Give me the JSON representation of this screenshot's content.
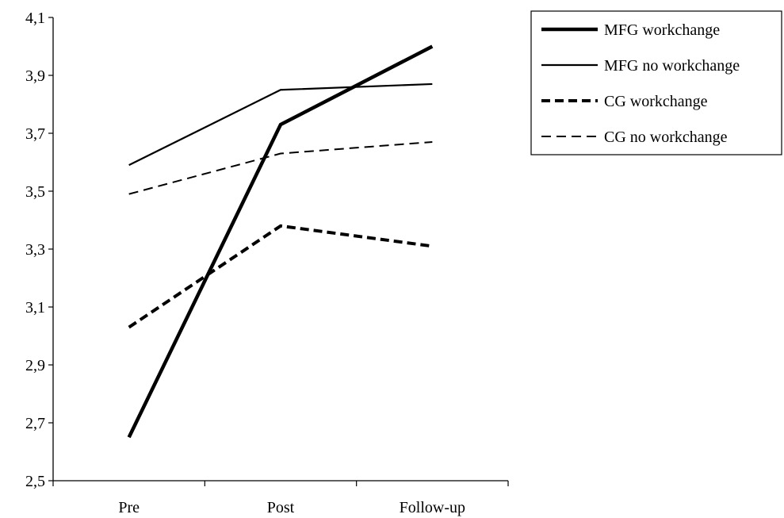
{
  "chart_data": {
    "type": "line",
    "title": "",
    "xlabel": "",
    "ylabel": "",
    "categories": [
      "Pre",
      "Post",
      "Follow-up"
    ],
    "ylim": [
      2.5,
      4.1
    ],
    "yticks": [
      "2,5",
      "2,7",
      "2,9",
      "3,1",
      "3,3",
      "3,5",
      "3,7",
      "3,9",
      "4,1"
    ],
    "grid": false,
    "legend_position": "top-right",
    "series": [
      {
        "name": "MFG workchange",
        "values": [
          2.65,
          3.73,
          4.0
        ],
        "style": "solid-thick",
        "color": "#000000"
      },
      {
        "name": "MFG no workchange",
        "values": [
          3.59,
          3.85,
          3.87
        ],
        "style": "solid-thin",
        "color": "#000000"
      },
      {
        "name": "CG workchange",
        "values": [
          3.03,
          3.38,
          3.31
        ],
        "style": "dashed-thick",
        "color": "#000000"
      },
      {
        "name": "CG no workchange",
        "values": [
          3.49,
          3.63,
          3.67
        ],
        "style": "dashed-thin",
        "color": "#000000"
      }
    ]
  }
}
